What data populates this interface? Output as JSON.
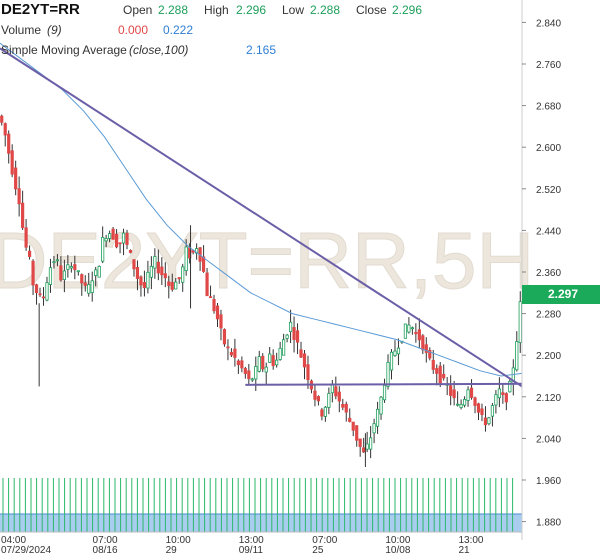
{
  "legend": {
    "symbol": "DE2YT=RR",
    "open_label": "Open",
    "open_value": "2.288",
    "high_label": "High",
    "high_value": "2.296",
    "low_label": "Low",
    "low_value": "2.288",
    "close_label": "Close",
    "close_value": "2.296",
    "volume_label": "Volume",
    "volume_param": "(9)",
    "volume_value_a": "0.000",
    "volume_value_b": "0.222",
    "sma_label": "Simple Moving Average",
    "sma_param": "(close,100)",
    "sma_value": "2.165"
  },
  "watermark": "DE2YT=RR,5H",
  "last_price": "2.297",
  "colors": {
    "up": "#1e9e5b",
    "down": "#e04848",
    "sma": "#5b9bd5",
    "trendline": "#6c5fa8",
    "volume_bars": "#2bb86a",
    "volume_area": "#a8cdef",
    "watermark": "#ece6dc"
  },
  "chart_data": {
    "type": "candlestick",
    "y_ticks": [
      "2.840",
      "2.760",
      "2.680",
      "2.600",
      "2.520",
      "2.440",
      "2.360",
      "2.280",
      "2.200",
      "2.120",
      "2.040",
      "1.960",
      "1.880"
    ],
    "ylim": [
      1.86,
      2.86
    ],
    "x_ticks": [
      {
        "time": "04:00",
        "date": "07/29/2024",
        "pos": 0.0
      },
      {
        "time": "07:00",
        "date": "08/16",
        "pos": 0.206
      },
      {
        "time": "10:00",
        "date": "29",
        "pos": 0.346
      },
      {
        "time": "13:00",
        "date": "09/11",
        "pos": 0.486
      },
      {
        "time": "07:00",
        "date": "25",
        "pos": 0.627
      },
      {
        "time": "10:00",
        "date": "10/08",
        "pos": 0.767
      },
      {
        "time": "13:00",
        "date": "21",
        "pos": 0.907
      }
    ],
    "price_path": [
      [
        0.0,
        2.66
      ],
      [
        0.01,
        2.64
      ],
      [
        0.02,
        2.59
      ],
      [
        0.03,
        2.54
      ],
      [
        0.04,
        2.5
      ],
      [
        0.05,
        2.42
      ],
      [
        0.06,
        2.38
      ],
      [
        0.068,
        2.33
      ],
      [
        0.076,
        2.32
      ],
      [
        0.084,
        2.3
      ],
      [
        0.092,
        2.34
      ],
      [
        0.1,
        2.37
      ],
      [
        0.11,
        2.39
      ],
      [
        0.12,
        2.35
      ],
      [
        0.13,
        2.36
      ],
      [
        0.14,
        2.38
      ],
      [
        0.15,
        2.36
      ],
      [
        0.16,
        2.34
      ],
      [
        0.17,
        2.32
      ],
      [
        0.18,
        2.35
      ],
      [
        0.19,
        2.36
      ],
      [
        0.2,
        2.42
      ],
      [
        0.21,
        2.44
      ],
      [
        0.22,
        2.43
      ],
      [
        0.23,
        2.41
      ],
      [
        0.24,
        2.43
      ],
      [
        0.25,
        2.4
      ],
      [
        0.26,
        2.37
      ],
      [
        0.27,
        2.34
      ],
      [
        0.28,
        2.33
      ],
      [
        0.29,
        2.36
      ],
      [
        0.3,
        2.38
      ],
      [
        0.31,
        2.36
      ],
      [
        0.32,
        2.35
      ],
      [
        0.33,
        2.33
      ],
      [
        0.34,
        2.34
      ],
      [
        0.35,
        2.35
      ],
      [
        0.36,
        2.4
      ],
      [
        0.37,
        2.39
      ],
      [
        0.38,
        2.41
      ],
      [
        0.39,
        2.38
      ],
      [
        0.4,
        2.32
      ],
      [
        0.41,
        2.3
      ],
      [
        0.42,
        2.27
      ],
      [
        0.43,
        2.23
      ],
      [
        0.44,
        2.21
      ],
      [
        0.45,
        2.2
      ],
      [
        0.46,
        2.18
      ],
      [
        0.47,
        2.17
      ],
      [
        0.48,
        2.15
      ],
      [
        0.49,
        2.16
      ],
      [
        0.5,
        2.19
      ],
      [
        0.51,
        2.17
      ],
      [
        0.52,
        2.2
      ],
      [
        0.53,
        2.18
      ],
      [
        0.54,
        2.21
      ],
      [
        0.55,
        2.24
      ],
      [
        0.56,
        2.26
      ],
      [
        0.57,
        2.23
      ],
      [
        0.58,
        2.2
      ],
      [
        0.59,
        2.17
      ],
      [
        0.6,
        2.14
      ],
      [
        0.61,
        2.11
      ],
      [
        0.62,
        2.09
      ],
      [
        0.63,
        2.11
      ],
      [
        0.64,
        2.14
      ],
      [
        0.65,
        2.12
      ],
      [
        0.66,
        2.1
      ],
      [
        0.67,
        2.08
      ],
      [
        0.68,
        2.06
      ],
      [
        0.69,
        2.03
      ],
      [
        0.7,
        2.01
      ],
      [
        0.71,
        2.03
      ],
      [
        0.72,
        2.07
      ],
      [
        0.73,
        2.1
      ],
      [
        0.74,
        2.15
      ],
      [
        0.75,
        2.19
      ],
      [
        0.76,
        2.21
      ],
      [
        0.77,
        2.23
      ],
      [
        0.78,
        2.25
      ],
      [
        0.79,
        2.26
      ],
      [
        0.8,
        2.24
      ],
      [
        0.81,
        2.23
      ],
      [
        0.82,
        2.2
      ],
      [
        0.83,
        2.18
      ],
      [
        0.84,
        2.17
      ],
      [
        0.85,
        2.15
      ],
      [
        0.86,
        2.14
      ],
      [
        0.87,
        2.12
      ],
      [
        0.88,
        2.1
      ],
      [
        0.89,
        2.11
      ],
      [
        0.9,
        2.14
      ],
      [
        0.91,
        2.12
      ],
      [
        0.92,
        2.09
      ],
      [
        0.93,
        2.07
      ],
      [
        0.94,
        2.08
      ],
      [
        0.95,
        2.11
      ],
      [
        0.96,
        2.13
      ],
      [
        0.97,
        2.11
      ],
      [
        0.98,
        2.14
      ],
      [
        0.99,
        2.2
      ],
      [
        1.0,
        2.296
      ]
    ],
    "sma_path": [
      [
        0.0,
        2.8
      ],
      [
        0.04,
        2.77
      ],
      [
        0.08,
        2.74
      ],
      [
        0.12,
        2.71
      ],
      [
        0.16,
        2.67
      ],
      [
        0.2,
        2.62
      ],
      [
        0.24,
        2.56
      ],
      [
        0.28,
        2.5
      ],
      [
        0.32,
        2.45
      ],
      [
        0.36,
        2.41
      ],
      [
        0.4,
        2.38
      ],
      [
        0.44,
        2.35
      ],
      [
        0.48,
        2.32
      ],
      [
        0.52,
        2.3
      ],
      [
        0.56,
        2.28
      ],
      [
        0.6,
        2.27
      ],
      [
        0.64,
        2.26
      ],
      [
        0.68,
        2.25
      ],
      [
        0.72,
        2.24
      ],
      [
        0.76,
        2.23
      ],
      [
        0.8,
        2.215
      ],
      [
        0.84,
        2.2
      ],
      [
        0.88,
        2.185
      ],
      [
        0.92,
        2.17
      ],
      [
        0.96,
        2.16
      ],
      [
        1.0,
        2.165
      ]
    ],
    "trendline_down": [
      [
        0.0,
        2.79
      ],
      [
        1.0,
        2.14
      ]
    ],
    "trendline_support": [
      [
        0.47,
        2.143
      ],
      [
        1.0,
        2.145
      ]
    ]
  }
}
